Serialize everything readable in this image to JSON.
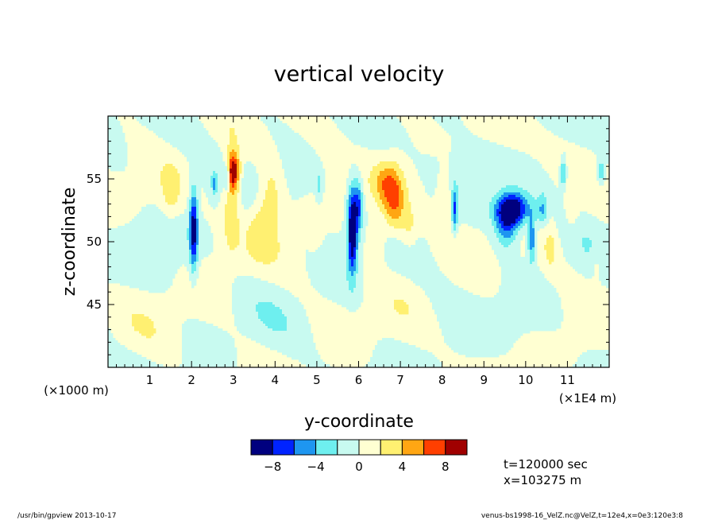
{
  "chart_data": {
    "type": "heatmap",
    "title": "vertical velocity",
    "xlabel": "y-coordinate",
    "ylabel": "z-coordinate",
    "x_unit_label": "(×1E4 m)",
    "y_unit_label": "(×1000 m)",
    "xlim": [
      0,
      12
    ],
    "ylim": [
      40,
      60
    ],
    "x_ticks": [
      1,
      2,
      3,
      4,
      5,
      6,
      7,
      8,
      9,
      10,
      11
    ],
    "x_tick_labels": [
      "1",
      "2",
      "3",
      "4",
      "5",
      "6",
      "7",
      "8",
      "9",
      "10",
      "11"
    ],
    "y_ticks": [
      45,
      50,
      55
    ],
    "y_tick_labels": [
      "45",
      "50",
      "55"
    ],
    "colorbar": {
      "levels": [
        -10,
        -8,
        -6,
        -4,
        -2,
        0,
        2,
        4,
        6,
        8,
        10
      ],
      "colors": [
        "#00007f",
        "#0023ff",
        "#1e96f0",
        "#6eefef",
        "#c8faf0",
        "#ffffd2",
        "#fff071",
        "#ffa613",
        "#ff3f00",
        "#a00000"
      ],
      "tick_values": [
        -8,
        -4,
        0,
        4,
        8
      ],
      "tick_labels": [
        "−8",
        "−4",
        "0",
        "4",
        "8"
      ]
    },
    "features": [
      {
        "y": 2.05,
        "z": 51.0,
        "amp": -9.5,
        "sy": 0.07,
        "sz": 2.2
      },
      {
        "y": 2.55,
        "z": 54.6,
        "amp": -4.5,
        "sy": 0.05,
        "sz": 0.6
      },
      {
        "y": 2.85,
        "z": 55.2,
        "amp": -5.0,
        "sy": 0.05,
        "sz": 0.8
      },
      {
        "y": 3.0,
        "z": 55.6,
        "amp": 9.0,
        "sy": 0.1,
        "sz": 1.0
      },
      {
        "y": 2.95,
        "z": 53.5,
        "amp": 3.8,
        "sy": 0.14,
        "sz": 2.8
      },
      {
        "y": 1.5,
        "z": 54.0,
        "amp": 2.5,
        "sy": 0.15,
        "sz": 1.3
      },
      {
        "y": 3.9,
        "z": 53.5,
        "amp": 3.2,
        "sy": 0.2,
        "sz": 2.2
      },
      {
        "y": 3.6,
        "z": 51.0,
        "amp": 2.0,
        "sy": 0.2,
        "sz": 1.5
      },
      {
        "y": 4.95,
        "z": 50.5,
        "amp": 2.0,
        "sy": 0.12,
        "sz": 0.8
      },
      {
        "y": 5.05,
        "z": 54.5,
        "amp": -3.0,
        "sy": 0.05,
        "sz": 0.8
      },
      {
        "y": 5.85,
        "z": 51.0,
        "amp": -11.0,
        "sy": 0.08,
        "sz": 2.4
      },
      {
        "y": 6.0,
        "z": 53.0,
        "amp": -6.0,
        "sy": 0.07,
        "sz": 1.5
      },
      {
        "y": 6.85,
        "z": 53.2,
        "amp": 5.8,
        "sy": 0.18,
        "sz": 1.8
      },
      {
        "y": 6.6,
        "z": 54.6,
        "amp": 3.5,
        "sy": 0.2,
        "sz": 1.2
      },
      {
        "y": 6.4,
        "z": 50.0,
        "amp": 2.5,
        "sy": 0.18,
        "sz": 1.4
      },
      {
        "y": 7.2,
        "z": 51.0,
        "amp": 2.5,
        "sy": 0.15,
        "sz": 1.3
      },
      {
        "y": 8.3,
        "z": 52.5,
        "amp": -6.0,
        "sy": 0.05,
        "sz": 1.3
      },
      {
        "y": 8.05,
        "z": 53.5,
        "amp": 2.5,
        "sy": 0.12,
        "sz": 1.5
      },
      {
        "y": 9.7,
        "z": 52.6,
        "amp": -10.0,
        "sy": 0.28,
        "sz": 0.9
      },
      {
        "y": 9.55,
        "z": 51.4,
        "amp": -6.0,
        "sy": 0.2,
        "sz": 1.3
      },
      {
        "y": 10.15,
        "z": 50.2,
        "amp": -6.5,
        "sy": 0.07,
        "sz": 1.3
      },
      {
        "y": 10.4,
        "z": 52.5,
        "amp": -4.0,
        "sy": 0.08,
        "sz": 0.9
      },
      {
        "y": 10.6,
        "z": 49.5,
        "amp": 2.0,
        "sy": 0.12,
        "sz": 1.5
      },
      {
        "y": 10.9,
        "z": 55.5,
        "amp": -5.0,
        "sy": 0.05,
        "sz": 0.8
      },
      {
        "y": 11.1,
        "z": 52.5,
        "amp": 2.0,
        "sy": 0.12,
        "sz": 1.2
      },
      {
        "y": 11.8,
        "z": 55.5,
        "amp": -4.0,
        "sy": 0.07,
        "sz": 0.8
      },
      {
        "y": 11.7,
        "z": 48.5,
        "amp": 2.0,
        "sy": 0.08,
        "sz": 1.0
      }
    ]
  },
  "annotations": {
    "time": "t=120000  sec",
    "xpos": "x=103275  m"
  },
  "footer": {
    "left": "/usr/bin/gpview   2013-10-17",
    "right": "venus-bs1998-16_VelZ.nc@VelZ,t=12e4,x=0e3:120e3:8"
  }
}
